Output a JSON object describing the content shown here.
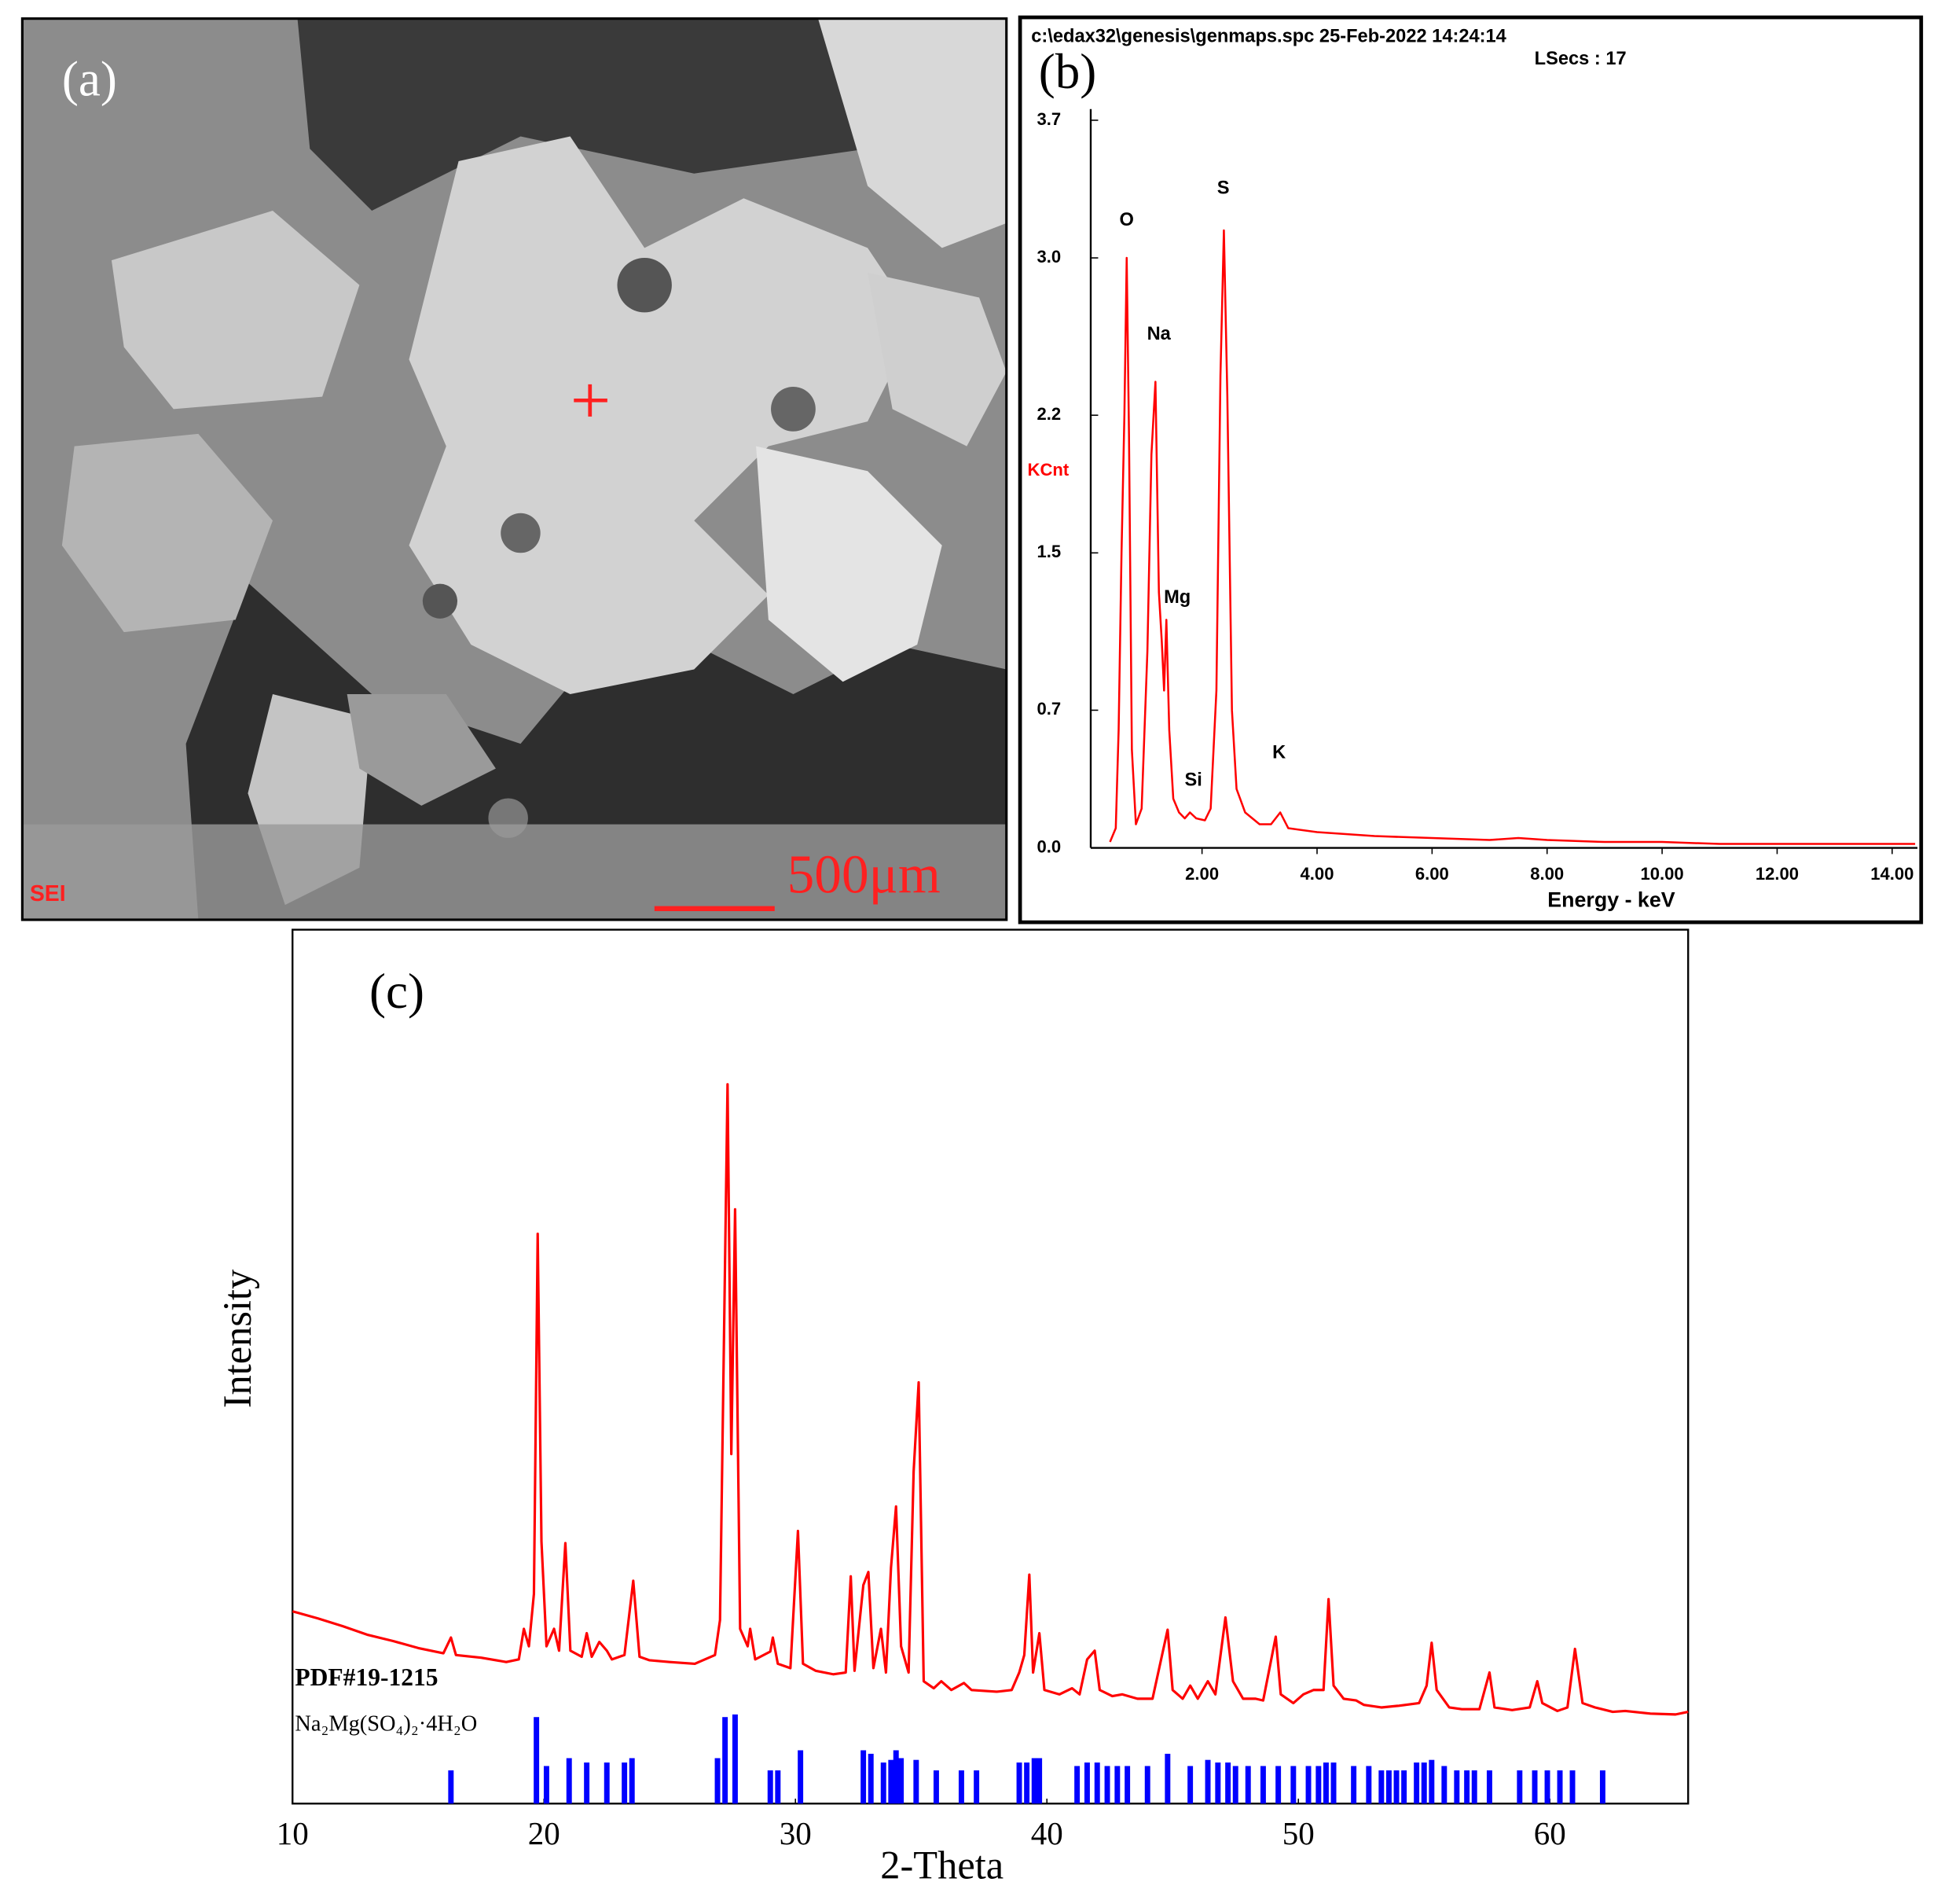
{
  "sem_image": {
    "label": "(a)",
    "detector": "SEI",
    "scale_bar": "500μm"
  },
  "chart_data": [
    {
      "type": "line",
      "label": "(b)",
      "header": "c:\\edax32\\genesis\\genmaps.spc  25-Feb-2022 14:24:14",
      "live_time": "LSecs :  17",
      "xlabel": "Energy - keV",
      "ylabel": "KCnt",
      "ylabel_color": "#ff0000",
      "xlim": [
        0,
        14.44
      ],
      "ylim": [
        0,
        3.7
      ],
      "xticks": [
        {
          "value": 2,
          "label": "2.00"
        },
        {
          "value": 4,
          "label": "4.00"
        },
        {
          "value": 6,
          "label": "6.00"
        },
        {
          "value": 8,
          "label": "8.00"
        },
        {
          "value": 10,
          "label": "10.00"
        },
        {
          "value": 12,
          "label": "12.00"
        },
        {
          "value": 14,
          "label": "14.00"
        }
      ],
      "yticks": [
        {
          "value": 0,
          "label": "0.0"
        },
        0.7,
        1.5,
        2.2,
        {
          "value": 3,
          "label": "3.0"
        },
        3.7
      ],
      "series": [
        {
          "color": "#ff0000",
          "kind": "line",
          "x": [
            0.4,
            0.5,
            0.55,
            0.6,
            0.65,
            0.69,
            0.73,
            0.78,
            0.85,
            0.95,
            1.05,
            1.12,
            1.19,
            1.25,
            1.3,
            1.34,
            1.38,
            1.43,
            1.5,
            1.6,
            1.7,
            1.79,
            1.9,
            2.05,
            2.15,
            2.25,
            2.32,
            2.38,
            2.44,
            2.52,
            2.6,
            2.75,
            3.0,
            3.2,
            3.36,
            3.5,
            4.0,
            5,
            6,
            7,
            7.5,
            8,
            9,
            10,
            11,
            12,
            13,
            14.4
          ],
          "values": [
            0.03,
            0.1,
            0.6,
            1.5,
            2.2,
            3.0,
            2.1,
            0.5,
            0.12,
            0.2,
            1.0,
            2.0,
            2.37,
            1.3,
            1.05,
            0.8,
            1.16,
            0.6,
            0.25,
            0.18,
            0.15,
            0.18,
            0.15,
            0.14,
            0.2,
            0.8,
            2.4,
            3.14,
            2.3,
            0.7,
            0.3,
            0.18,
            0.12,
            0.12,
            0.18,
            0.1,
            0.08,
            0.06,
            0.05,
            0.04,
            0.05,
            0.04,
            0.03,
            0.03,
            0.02,
            0.02,
            0.02,
            0.02
          ]
        }
      ],
      "annotations": [
        {
          "text": "O",
          "x": 0.69,
          "y": 3.19
        },
        {
          "text": "Na",
          "x": 1.25,
          "y": 2.61
        },
        {
          "text": "Mg",
          "x": 1.57,
          "y": 1.27
        },
        {
          "text": "Si",
          "x": 1.85,
          "y": 0.34
        },
        {
          "text": "S",
          "x": 2.37,
          "y": 3.35
        },
        {
          "text": "K",
          "x": 3.34,
          "y": 0.48
        }
      ]
    },
    {
      "type": "line",
      "label": "(c)",
      "xlabel": "2-Theta",
      "ylabel": "Intensity",
      "xlim": [
        10,
        65.5
      ],
      "ylim": [
        0,
        100
      ],
      "xticks": [
        10,
        20,
        30,
        40,
        50,
        60
      ],
      "series": [
        {
          "color": "#ff0000",
          "kind": "line",
          "x": [
            10,
            11,
            12,
            13,
            14,
            15,
            16,
            16.3,
            16.5,
            17.5,
            18.5,
            19,
            19.2,
            19.4,
            19.6,
            19.75,
            19.9,
            20.1,
            20.4,
            20.6,
            20.85,
            21.05,
            21.5,
            21.7,
            21.9,
            22.2,
            22.5,
            22.7,
            23.2,
            23.55,
            23.8,
            24.2,
            25,
            26,
            26.8,
            27,
            27.3,
            27.45,
            27.6,
            27.8,
            28.1,
            28.2,
            28.4,
            29,
            29.1,
            29.3,
            29.8,
            30.1,
            30.3,
            30.8,
            31.5,
            32,
            32.2,
            32.35,
            32.7,
            32.9,
            33.1,
            33.4,
            33.6,
            33.8,
            34,
            34.2,
            34.5,
            34.7,
            34.9,
            35.1,
            35.5,
            35.8,
            36.2,
            36.7,
            37,
            38,
            38.6,
            38.9,
            39.1,
            39.3,
            39.45,
            39.7,
            39.9,
            40.5,
            41,
            41.3,
            41.6,
            41.9,
            42.1,
            42.6,
            43,
            43.6,
            44.2,
            44.8,
            45,
            45.4,
            45.7,
            46,
            46.4,
            46.7,
            47.1,
            47.4,
            47.8,
            48.3,
            48.6,
            49.1,
            49.3,
            49.8,
            50.2,
            50.6,
            51,
            51.2,
            51.4,
            51.8,
            52.3,
            52.6,
            53.3,
            54,
            54.8,
            55.1,
            55.3,
            55.5,
            56,
            56.5,
            57.2,
            57.6,
            57.8,
            58.5,
            59.2,
            59.5,
            59.7,
            60.3,
            60.7,
            61,
            61.3,
            61.8,
            62.5,
            63,
            64,
            65,
            65.5
          ],
          "values": [
            22,
            21.2,
            20.3,
            19.3,
            18.6,
            17.8,
            17.2,
            19,
            17,
            16.7,
            16.2,
            16.5,
            20,
            18,
            24,
            65.2,
            30,
            18,
            20,
            17.5,
            29.8,
            17.5,
            16.8,
            19.5,
            16.8,
            18.5,
            17.5,
            16.5,
            17,
            25.5,
            16.8,
            16.4,
            16.2,
            16,
            17,
            21,
            82.3,
            40,
            68,
            20,
            18,
            20,
            16.5,
            17.4,
            19,
            16,
            15.5,
            31.2,
            16,
            15.2,
            14.8,
            15,
            26,
            15.2,
            25,
            26.5,
            15.5,
            20,
            15,
            27,
            34,
            18,
            15,
            38,
            48.2,
            14,
            13.2,
            14,
            13,
            13.8,
            13,
            12.8,
            13,
            15,
            17,
            26.2,
            15,
            19.5,
            13,
            12.5,
            13.2,
            12.5,
            16.5,
            17.5,
            13,
            12.3,
            12.5,
            12,
            12,
            19.9,
            13,
            12,
            13.5,
            12,
            14,
            12.5,
            21.3,
            14,
            12,
            12,
            11.8,
            19.1,
            12.5,
            11.5,
            12.5,
            13,
            13,
            23.4,
            13.5,
            12,
            11.8,
            11.3,
            11,
            11.2,
            11.5,
            13.5,
            18.4,
            13,
            11,
            10.8,
            10.8,
            15,
            11,
            10.7,
            11,
            14,
            11.5,
            10.6,
            11,
            17.7,
            11.5,
            11,
            10.5,
            10.6,
            10.3,
            10.2,
            10.5
          ]
        },
        {
          "name": "PDF#19-1215",
          "compound": "Na₂Mg(SO₄)₂·4H₂O",
          "color": "#0000ff",
          "kind": "stick",
          "x": [
            16.3,
            19.7,
            20.1,
            21,
            21.7,
            22.5,
            23.2,
            23.5,
            26.9,
            27.2,
            27.6,
            29,
            29.3,
            30.2,
            32.7,
            33,
            33.5,
            33.8,
            34,
            34.2,
            34.8,
            35.6,
            36.6,
            37.2,
            38.9,
            39.2,
            39.5,
            39.7,
            41.2,
            41.6,
            42,
            42.4,
            42.8,
            43.2,
            44,
            44.8,
            45.7,
            46.4,
            46.8,
            47.2,
            47.5,
            48,
            48.6,
            49.2,
            49.8,
            50.4,
            50.8,
            51.1,
            51.4,
            52.2,
            52.8,
            53.3,
            53.6,
            53.9,
            54.2,
            54.7,
            55,
            55.3,
            55.8,
            56.3,
            56.7,
            57,
            57.6,
            58.8,
            59.4,
            59.9,
            60.4,
            60.9,
            62.1
          ],
          "values": [
            3.8,
            9.9,
            4.3,
            5.2,
            4.7,
            4.7,
            4.7,
            5.2,
            5.2,
            9.9,
            10.2,
            3.8,
            3.8,
            6.1,
            6.1,
            5.7,
            4.7,
            5.0,
            6.1,
            5.2,
            5.0,
            3.8,
            3.8,
            3.8,
            4.7,
            4.7,
            5.2,
            5.2,
            4.3,
            4.7,
            4.7,
            4.3,
            4.3,
            4.3,
            4.3,
            5.7,
            4.3,
            5.0,
            4.7,
            4.7,
            4.3,
            4.3,
            4.3,
            4.3,
            4.3,
            4.3,
            4.3,
            4.7,
            4.7,
            4.3,
            4.3,
            3.8,
            3.8,
            3.8,
            3.8,
            4.7,
            4.7,
            5.0,
            4.3,
            3.8,
            3.8,
            3.8,
            3.8,
            3.8,
            3.8,
            3.8,
            3.8,
            3.8,
            3.8
          ]
        }
      ]
    }
  ]
}
